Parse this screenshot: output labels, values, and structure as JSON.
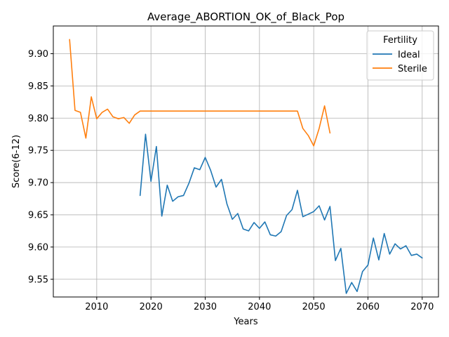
{
  "chart_data": {
    "type": "line",
    "title": "Average_ABORTION_OK_of_Black_Pop",
    "xlabel": "Years",
    "ylabel": "Score(6-12)",
    "xlim": [
      2002,
      2073
    ],
    "ylim": [
      9.5225,
      9.943
    ],
    "xticks": [
      2010,
      2020,
      2030,
      2040,
      2050,
      2060,
      2070
    ],
    "yticks": [
      9.55,
      9.6,
      9.65,
      9.7,
      9.75,
      9.8,
      9.85,
      9.9
    ],
    "grid": true,
    "legend": {
      "title": "Fertility",
      "position": "upper right"
    },
    "series": [
      {
        "name": "Ideal",
        "color": "#1f77b4",
        "x": [
          2018,
          2019,
          2020,
          2021,
          2022,
          2023,
          2024,
          2025,
          2026,
          2027,
          2028,
          2029,
          2030,
          2031,
          2032,
          2033,
          2034,
          2035,
          2036,
          2037,
          2038,
          2039,
          2040,
          2041,
          2042,
          2043,
          2044,
          2045,
          2046,
          2047,
          2048,
          2049,
          2050,
          2051,
          2052,
          2053,
          2054,
          2055,
          2056,
          2057,
          2058,
          2059,
          2060,
          2061,
          2062,
          2063,
          2064,
          2065,
          2066,
          2067,
          2068,
          2069,
          2070
        ],
        "y": [
          9.68,
          9.775,
          9.702,
          9.756,
          9.648,
          9.696,
          9.671,
          9.678,
          9.68,
          9.699,
          9.723,
          9.72,
          9.739,
          9.719,
          9.693,
          9.705,
          9.667,
          9.643,
          9.652,
          9.628,
          9.625,
          9.638,
          9.629,
          9.639,
          9.619,
          9.617,
          9.624,
          9.649,
          9.658,
          9.688,
          9.647,
          9.651,
          9.655,
          9.664,
          9.642,
          9.663,
          9.579,
          9.598,
          9.528,
          9.545,
          9.531,
          9.562,
          9.572,
          9.614,
          9.58,
          9.621,
          9.589,
          9.605,
          9.597,
          9.602,
          9.587,
          9.589,
          9.583
        ]
      },
      {
        "name": "Sterile",
        "color": "#ff7f0e",
        "x": [
          2005,
          2006,
          2007,
          2008,
          2009,
          2010,
          2011,
          2012,
          2013,
          2014,
          2015,
          2016,
          2017,
          2018,
          2019,
          2020,
          2021,
          2022,
          2023,
          2024,
          2025,
          2026,
          2027,
          2028,
          2029,
          2030,
          2031,
          2032,
          2033,
          2034,
          2035,
          2036,
          2037,
          2038,
          2039,
          2040,
          2041,
          2042,
          2043,
          2044,
          2045,
          2046,
          2047,
          2048,
          2049,
          2050,
          2051,
          2052,
          2053
        ],
        "y": [
          9.922,
          9.812,
          9.809,
          9.769,
          9.833,
          9.799,
          9.809,
          9.814,
          9.802,
          9.799,
          9.801,
          9.792,
          9.805,
          9.811,
          9.811,
          9.811,
          9.811,
          9.811,
          9.811,
          9.811,
          9.811,
          9.811,
          9.811,
          9.811,
          9.811,
          9.811,
          9.811,
          9.811,
          9.811,
          9.811,
          9.811,
          9.811,
          9.811,
          9.811,
          9.811,
          9.811,
          9.811,
          9.811,
          9.811,
          9.811,
          9.811,
          9.811,
          9.811,
          9.784,
          9.773,
          9.757,
          9.784,
          9.819,
          9.777
        ]
      }
    ]
  }
}
